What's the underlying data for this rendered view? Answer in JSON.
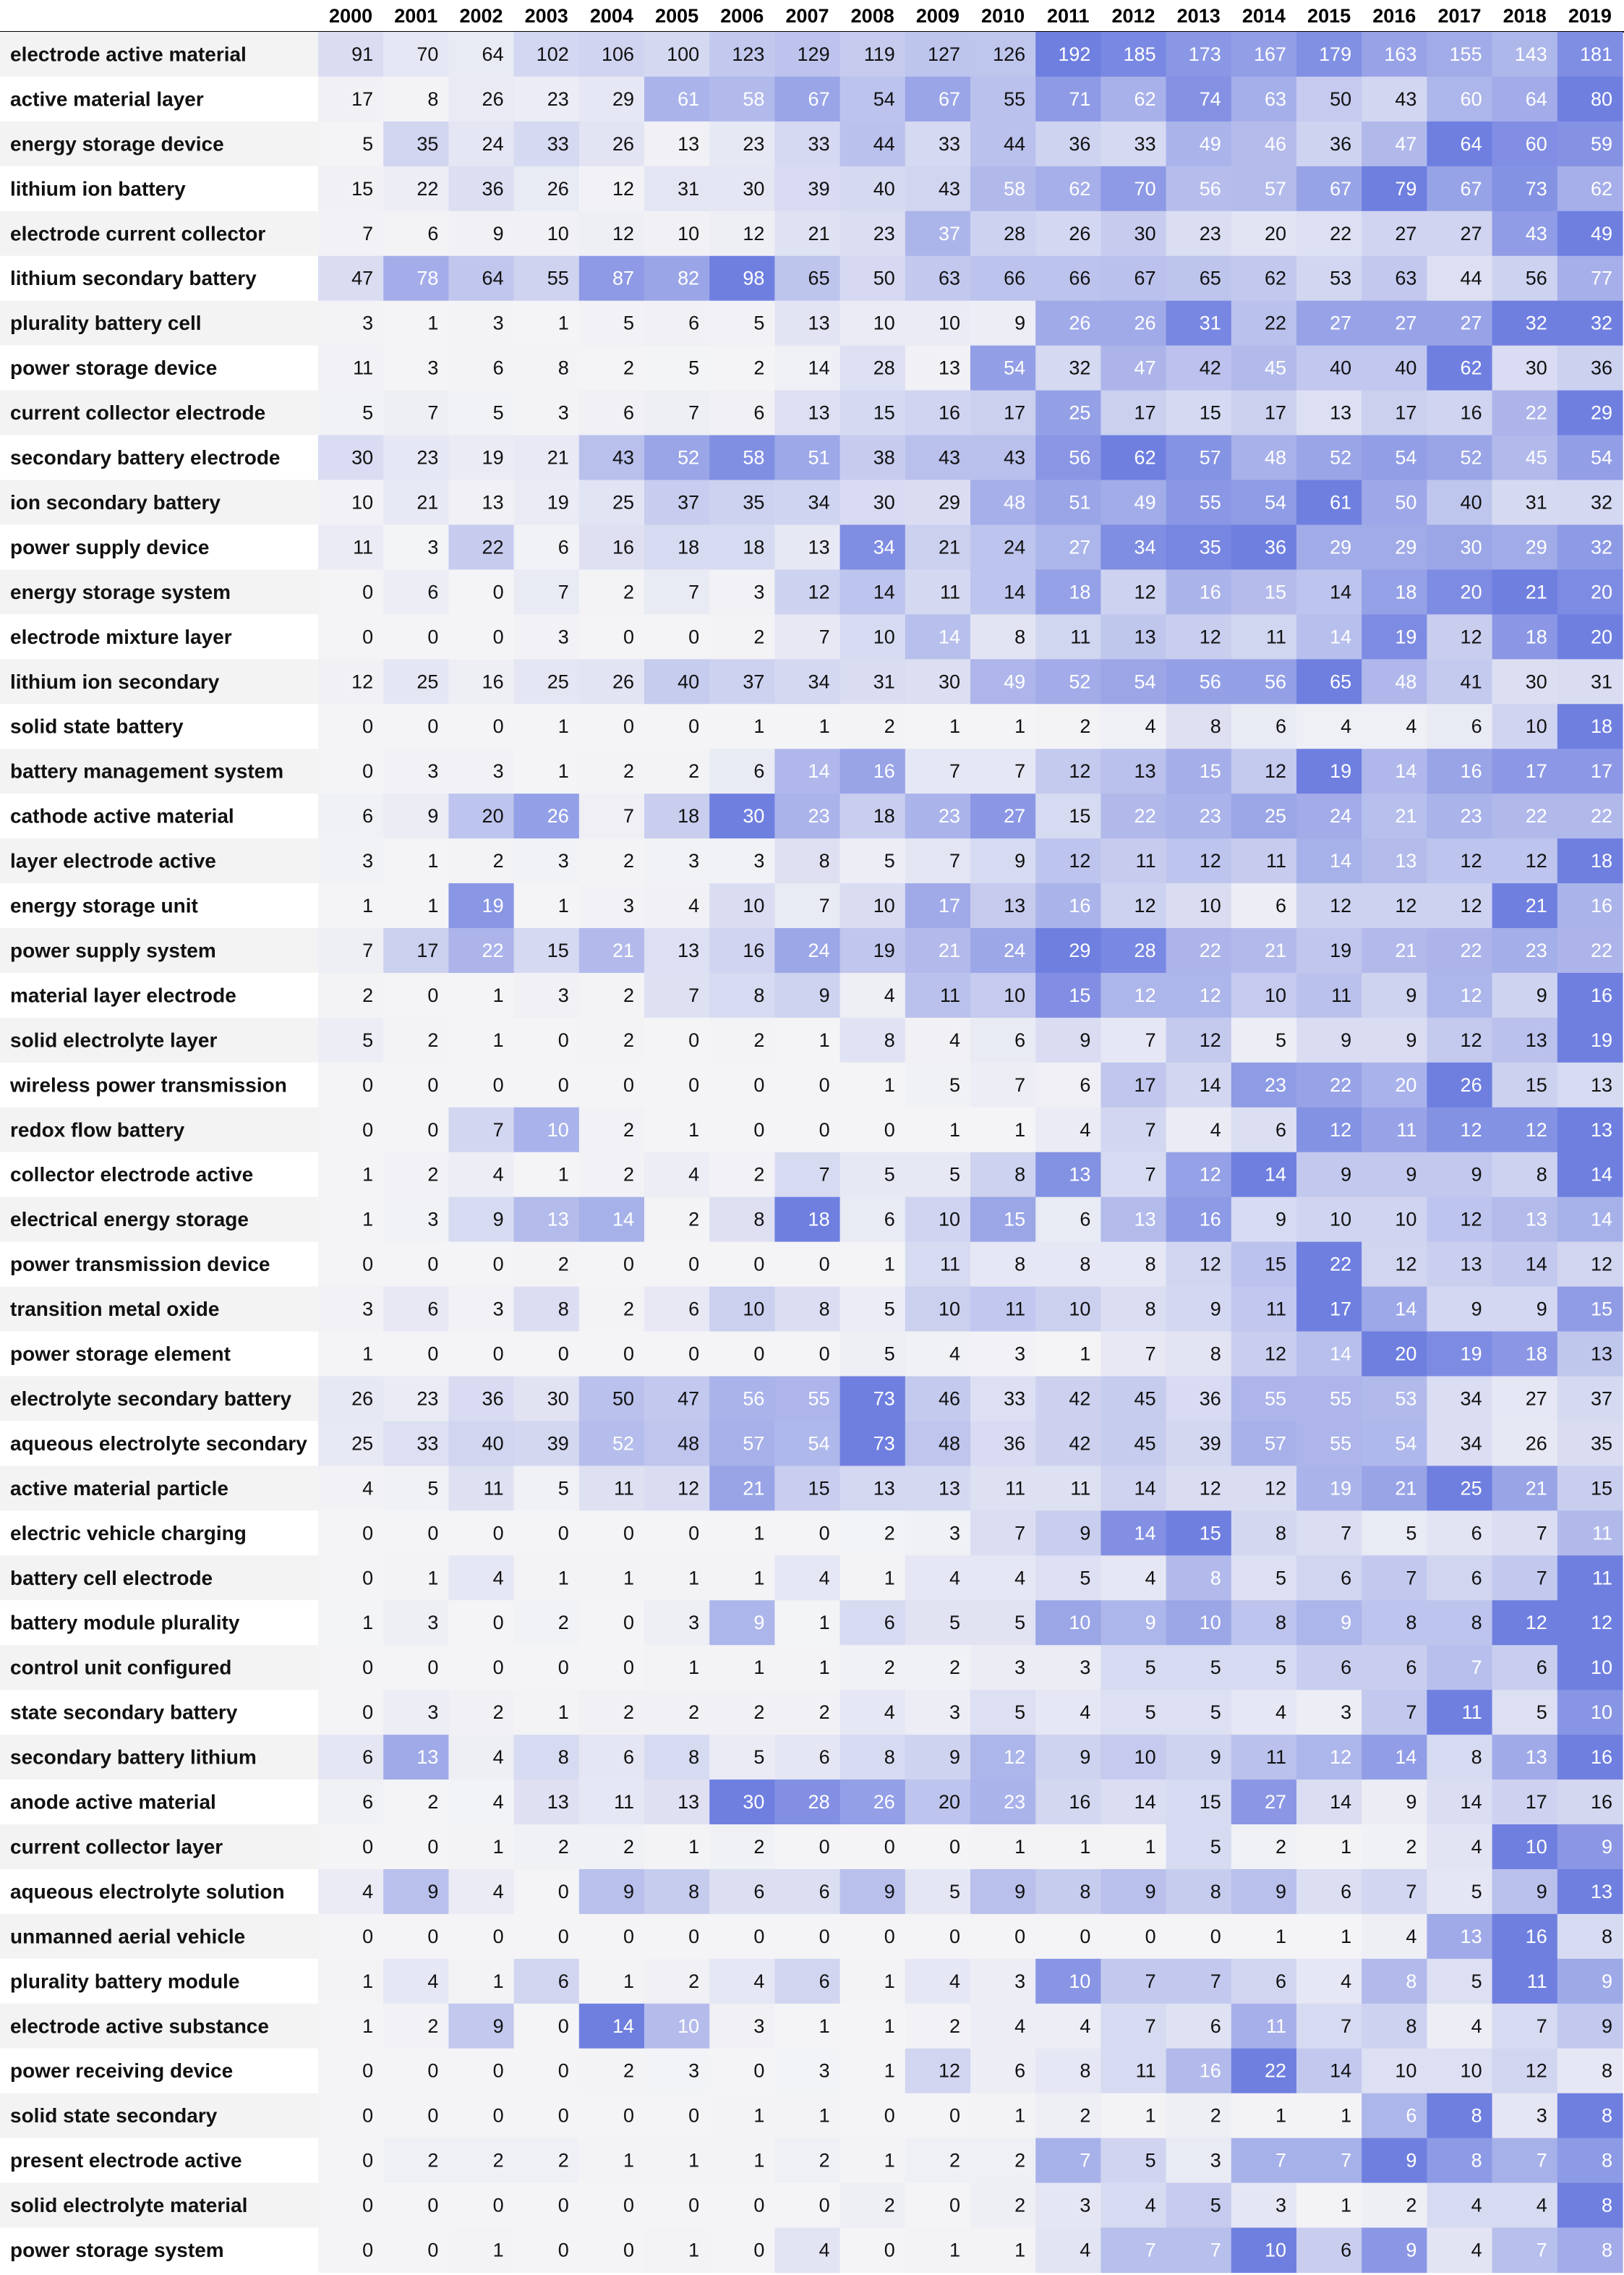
{
  "chart_data": {
    "type": "heatmap",
    "title": "",
    "xlabel": "",
    "ylabel": "",
    "x": [
      "2000",
      "2001",
      "2002",
      "2003",
      "2004",
      "2005",
      "2006",
      "2007",
      "2008",
      "2009",
      "2010",
      "2011",
      "2012",
      "2013",
      "2014",
      "2015",
      "2016",
      "2017",
      "2018",
      "2019"
    ],
    "rows": [
      {
        "label": "electrode active material",
        "values": [
          91,
          70,
          64,
          102,
          106,
          100,
          123,
          129,
          119,
          127,
          126,
          192,
          185,
          173,
          167,
          179,
          163,
          155,
          143,
          181
        ]
      },
      {
        "label": "active material layer",
        "values": [
          17,
          8,
          26,
          23,
          29,
          61,
          58,
          67,
          54,
          67,
          55,
          71,
          62,
          74,
          63,
          50,
          43,
          60,
          64,
          80
        ]
      },
      {
        "label": "energy storage device",
        "values": [
          5,
          35,
          24,
          33,
          26,
          13,
          23,
          33,
          44,
          33,
          44,
          36,
          33,
          49,
          46,
          36,
          47,
          64,
          60,
          59
        ]
      },
      {
        "label": "lithium ion battery",
        "values": [
          15,
          22,
          36,
          26,
          12,
          31,
          30,
          39,
          40,
          43,
          58,
          62,
          70,
          56,
          57,
          67,
          79,
          67,
          73,
          62
        ]
      },
      {
        "label": "electrode current collector",
        "values": [
          7,
          6,
          9,
          10,
          12,
          10,
          12,
          21,
          23,
          37,
          28,
          26,
          30,
          23,
          20,
          22,
          27,
          27,
          43,
          49
        ]
      },
      {
        "label": "lithium secondary battery",
        "values": [
          47,
          78,
          64,
          55,
          87,
          82,
          98,
          65,
          50,
          63,
          66,
          66,
          67,
          65,
          62,
          53,
          63,
          44,
          56,
          77
        ]
      },
      {
        "label": "plurality battery cell",
        "values": [
          3,
          1,
          3,
          1,
          5,
          6,
          5,
          13,
          10,
          10,
          9,
          26,
          26,
          31,
          22,
          27,
          27,
          27,
          32,
          32
        ]
      },
      {
        "label": "power storage device",
        "values": [
          11,
          3,
          6,
          8,
          2,
          5,
          2,
          14,
          28,
          13,
          54,
          32,
          47,
          42,
          45,
          40,
          40,
          62,
          30,
          36
        ]
      },
      {
        "label": "current collector electrode",
        "values": [
          5,
          7,
          5,
          3,
          6,
          7,
          6,
          13,
          15,
          16,
          17,
          25,
          17,
          15,
          17,
          13,
          17,
          16,
          22,
          29
        ]
      },
      {
        "label": "secondary battery electrode",
        "values": [
          30,
          23,
          19,
          21,
          43,
          52,
          58,
          51,
          38,
          43,
          43,
          56,
          62,
          57,
          48,
          52,
          54,
          52,
          45,
          54
        ]
      },
      {
        "label": "ion secondary battery",
        "values": [
          10,
          21,
          13,
          19,
          25,
          37,
          35,
          34,
          30,
          29,
          48,
          51,
          49,
          55,
          54,
          61,
          50,
          40,
          31,
          32
        ]
      },
      {
        "label": "power supply device",
        "values": [
          11,
          3,
          22,
          6,
          16,
          18,
          18,
          13,
          34,
          21,
          24,
          27,
          34,
          35,
          36,
          29,
          29,
          30,
          29,
          32
        ]
      },
      {
        "label": "energy storage system",
        "values": [
          0,
          6,
          0,
          7,
          2,
          7,
          3,
          12,
          14,
          11,
          14,
          18,
          12,
          16,
          15,
          14,
          18,
          20,
          21,
          20
        ]
      },
      {
        "label": "electrode mixture layer",
        "values": [
          0,
          0,
          0,
          3,
          0,
          0,
          2,
          7,
          10,
          14,
          8,
          11,
          13,
          12,
          11,
          14,
          19,
          12,
          18,
          20
        ]
      },
      {
        "label": "lithium ion secondary",
        "values": [
          12,
          25,
          16,
          25,
          26,
          40,
          37,
          34,
          31,
          30,
          49,
          52,
          54,
          56,
          56,
          65,
          48,
          41,
          30,
          31
        ]
      },
      {
        "label": "solid state battery",
        "values": [
          0,
          0,
          0,
          1,
          0,
          0,
          1,
          1,
          2,
          1,
          1,
          2,
          4,
          8,
          6,
          4,
          4,
          6,
          10,
          18
        ]
      },
      {
        "label": "battery management system",
        "values": [
          0,
          3,
          3,
          1,
          2,
          2,
          6,
          14,
          16,
          7,
          7,
          12,
          13,
          15,
          12,
          19,
          14,
          16,
          17,
          17
        ]
      },
      {
        "label": "cathode active material",
        "values": [
          6,
          9,
          20,
          26,
          7,
          18,
          30,
          23,
          18,
          23,
          27,
          15,
          22,
          23,
          25,
          24,
          21,
          23,
          22,
          22
        ]
      },
      {
        "label": "layer electrode active",
        "values": [
          3,
          1,
          2,
          3,
          2,
          3,
          3,
          8,
          5,
          7,
          9,
          12,
          11,
          12,
          11,
          14,
          13,
          12,
          12,
          18
        ]
      },
      {
        "label": "energy storage unit",
        "values": [
          1,
          1,
          19,
          1,
          3,
          4,
          10,
          7,
          10,
          17,
          13,
          16,
          12,
          10,
          6,
          12,
          12,
          12,
          21,
          16
        ]
      },
      {
        "label": "power supply system",
        "values": [
          7,
          17,
          22,
          15,
          21,
          13,
          16,
          24,
          19,
          21,
          24,
          29,
          28,
          22,
          21,
          19,
          21,
          22,
          23,
          22
        ]
      },
      {
        "label": "material layer electrode",
        "values": [
          2,
          0,
          1,
          3,
          2,
          7,
          8,
          9,
          4,
          11,
          10,
          15,
          12,
          12,
          10,
          11,
          9,
          12,
          9,
          16
        ]
      },
      {
        "label": "solid electrolyte layer",
        "values": [
          5,
          2,
          1,
          0,
          2,
          0,
          2,
          1,
          8,
          4,
          6,
          9,
          7,
          12,
          5,
          9,
          9,
          12,
          13,
          19
        ]
      },
      {
        "label": "wireless power transmission",
        "values": [
          0,
          0,
          0,
          0,
          0,
          0,
          0,
          0,
          1,
          5,
          7,
          6,
          17,
          14,
          23,
          22,
          20,
          26,
          15,
          13
        ]
      },
      {
        "label": "redox flow battery",
        "values": [
          0,
          0,
          7,
          10,
          2,
          1,
          0,
          0,
          0,
          1,
          1,
          4,
          7,
          4,
          6,
          12,
          11,
          12,
          12,
          13
        ]
      },
      {
        "label": "collector electrode active",
        "values": [
          1,
          2,
          4,
          1,
          2,
          4,
          2,
          7,
          5,
          5,
          8,
          13,
          7,
          12,
          14,
          9,
          9,
          9,
          8,
          14
        ]
      },
      {
        "label": "electrical energy storage",
        "values": [
          1,
          3,
          9,
          13,
          14,
          2,
          8,
          18,
          6,
          10,
          15,
          6,
          13,
          16,
          9,
          10,
          10,
          12,
          13,
          14
        ]
      },
      {
        "label": "power transmission device",
        "values": [
          0,
          0,
          0,
          2,
          0,
          0,
          0,
          0,
          1,
          11,
          8,
          8,
          8,
          12,
          15,
          22,
          12,
          13,
          14,
          12
        ]
      },
      {
        "label": "transition metal oxide",
        "values": [
          3,
          6,
          3,
          8,
          2,
          6,
          10,
          8,
          5,
          10,
          11,
          10,
          8,
          9,
          11,
          17,
          14,
          9,
          9,
          15
        ]
      },
      {
        "label": "power storage element",
        "values": [
          1,
          0,
          0,
          0,
          0,
          0,
          0,
          0,
          5,
          4,
          3,
          1,
          7,
          8,
          12,
          14,
          20,
          19,
          18,
          13
        ]
      },
      {
        "label": "electrolyte secondary battery",
        "values": [
          26,
          23,
          36,
          30,
          50,
          47,
          56,
          55,
          73,
          46,
          33,
          42,
          45,
          36,
          55,
          55,
          53,
          34,
          27,
          37
        ]
      },
      {
        "label": "aqueous electrolyte secondary",
        "values": [
          25,
          33,
          40,
          39,
          52,
          48,
          57,
          54,
          73,
          48,
          36,
          42,
          45,
          39,
          57,
          55,
          54,
          34,
          26,
          35
        ]
      },
      {
        "label": "active material particle",
        "values": [
          4,
          5,
          11,
          5,
          11,
          12,
          21,
          15,
          13,
          13,
          11,
          11,
          14,
          12,
          12,
          19,
          21,
          25,
          21,
          15
        ]
      },
      {
        "label": "electric vehicle charging",
        "values": [
          0,
          0,
          0,
          0,
          0,
          0,
          1,
          0,
          2,
          3,
          7,
          9,
          14,
          15,
          8,
          7,
          5,
          6,
          7,
          11
        ]
      },
      {
        "label": "battery cell electrode",
        "values": [
          0,
          1,
          4,
          1,
          1,
          1,
          1,
          4,
          1,
          4,
          4,
          5,
          4,
          8,
          5,
          6,
          7,
          6,
          7,
          11
        ]
      },
      {
        "label": "battery module plurality",
        "values": [
          1,
          3,
          0,
          2,
          0,
          3,
          9,
          1,
          6,
          5,
          5,
          10,
          9,
          10,
          8,
          9,
          8,
          8,
          12,
          12
        ]
      },
      {
        "label": "control unit configured",
        "values": [
          0,
          0,
          0,
          0,
          0,
          1,
          1,
          1,
          2,
          2,
          3,
          3,
          5,
          5,
          5,
          6,
          6,
          7,
          6,
          10
        ]
      },
      {
        "label": "state secondary battery",
        "values": [
          0,
          3,
          2,
          1,
          2,
          2,
          2,
          2,
          4,
          3,
          5,
          4,
          5,
          5,
          4,
          3,
          7,
          11,
          5,
          10
        ]
      },
      {
        "label": "secondary battery lithium",
        "values": [
          6,
          13,
          4,
          8,
          6,
          8,
          5,
          6,
          8,
          9,
          12,
          9,
          10,
          9,
          11,
          12,
          14,
          8,
          13,
          16
        ]
      },
      {
        "label": "anode active material",
        "values": [
          6,
          2,
          4,
          13,
          11,
          13,
          30,
          28,
          26,
          20,
          23,
          16,
          14,
          15,
          27,
          14,
          9,
          14,
          17,
          16
        ]
      },
      {
        "label": "current collector layer",
        "values": [
          0,
          0,
          1,
          2,
          2,
          1,
          2,
          0,
          0,
          0,
          1,
          1,
          1,
          5,
          2,
          1,
          2,
          4,
          10,
          9
        ]
      },
      {
        "label": "aqueous electrolyte solution",
        "values": [
          4,
          9,
          4,
          0,
          9,
          8,
          6,
          6,
          9,
          5,
          9,
          8,
          9,
          8,
          9,
          6,
          7,
          5,
          9,
          13
        ]
      },
      {
        "label": "unmanned aerial vehicle",
        "values": [
          0,
          0,
          0,
          0,
          0,
          0,
          0,
          0,
          0,
          0,
          0,
          0,
          0,
          0,
          1,
          1,
          4,
          13,
          16,
          8
        ]
      },
      {
        "label": "plurality battery module",
        "values": [
          1,
          4,
          1,
          6,
          1,
          2,
          4,
          6,
          1,
          4,
          3,
          10,
          7,
          7,
          6,
          4,
          8,
          5,
          11,
          9
        ]
      },
      {
        "label": "electrode active substance",
        "values": [
          1,
          2,
          9,
          0,
          14,
          10,
          3,
          1,
          1,
          2,
          4,
          4,
          7,
          6,
          11,
          7,
          8,
          4,
          7,
          9
        ]
      },
      {
        "label": "power receiving device",
        "values": [
          0,
          0,
          0,
          0,
          2,
          3,
          0,
          3,
          1,
          12,
          6,
          8,
          11,
          16,
          22,
          14,
          10,
          10,
          12,
          8
        ]
      },
      {
        "label": "solid state secondary",
        "values": [
          0,
          0,
          0,
          0,
          0,
          0,
          1,
          1,
          0,
          0,
          1,
          2,
          1,
          2,
          1,
          1,
          6,
          8,
          3,
          8
        ]
      },
      {
        "label": "present electrode active",
        "values": [
          0,
          2,
          2,
          2,
          1,
          1,
          1,
          2,
          1,
          2,
          2,
          7,
          5,
          3,
          7,
          7,
          9,
          8,
          7,
          8
        ]
      },
      {
        "label": "solid electrolyte material",
        "values": [
          0,
          0,
          0,
          0,
          0,
          0,
          0,
          0,
          2,
          0,
          2,
          3,
          4,
          5,
          3,
          1,
          2,
          4,
          4,
          8
        ]
      },
      {
        "label": "power storage system",
        "values": [
          0,
          0,
          1,
          0,
          0,
          1,
          0,
          4,
          0,
          1,
          1,
          4,
          7,
          7,
          10,
          6,
          9,
          4,
          7,
          8
        ]
      }
    ],
    "color_scale": {
      "low": "#f4f4f6",
      "high": "#6f7fe0"
    },
    "grid": false,
    "legend": "none"
  }
}
